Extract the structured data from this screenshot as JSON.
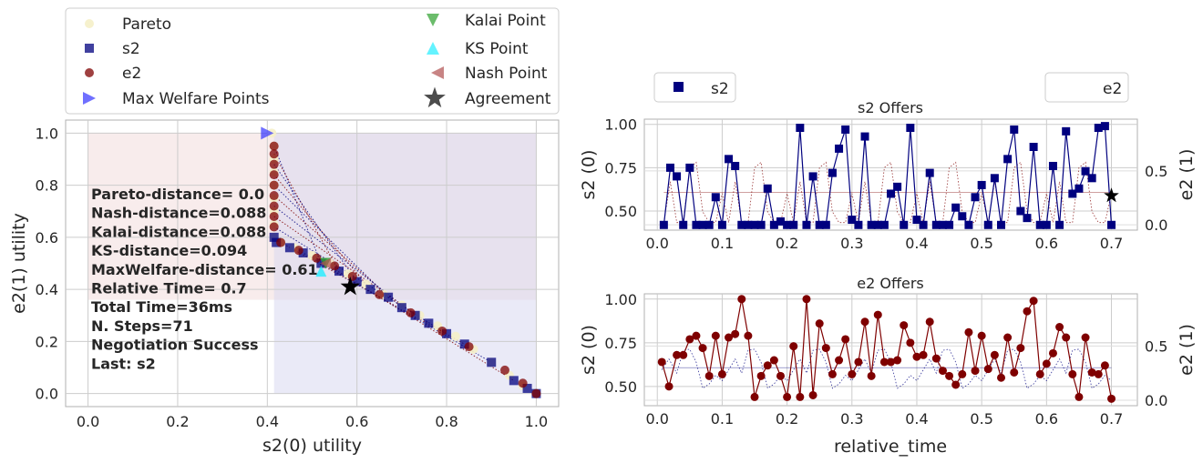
{
  "legend_left": {
    "entries": [
      {
        "label": "Pareto",
        "marker": "circle",
        "color": "#f5f0c8"
      },
      {
        "label": "s2",
        "marker": "square",
        "color": "#00007f"
      },
      {
        "label": "e2",
        "marker": "circle",
        "color": "#7f0000"
      },
      {
        "label": "Max Welfare Points",
        "marker": "triangle-right",
        "color": "#3333ff"
      },
      {
        "label": "Kalai Point",
        "marker": "triangle-down",
        "color": "#2ca02c"
      },
      {
        "label": "KS Point",
        "marker": "triangle-up",
        "color": "#22eeff"
      },
      {
        "label": "Nash Point",
        "marker": "triangle-left",
        "color": "#b05050"
      },
      {
        "label": "Agreement",
        "marker": "star",
        "color": "#000000"
      }
    ]
  },
  "colors": {
    "s2": "#00007f",
    "e2": "#7f0000",
    "grid": "#cccccc",
    "axis": "#b0b0b0",
    "text": "#262626"
  },
  "annotation_lines": [
    "Pareto-distance=  0.0",
    "Nash-distance=0.088",
    "Kalai-distance=0.088",
    "KS-distance=0.094",
    "MaxWelfare-distance= 0.61",
    "Relative Time=  0.7",
    "Total Time=36ms",
    "N. Steps=71",
    "Negotiation Success",
    "Last: s2"
  ],
  "chart_data": [
    {
      "type": "scatter",
      "xlabel": "s2(0) utility",
      "ylabel": "e2(1) utility",
      "xlim": [
        -0.05,
        1.05
      ],
      "ylim": [
        -0.05,
        1.05
      ],
      "xticks": [
        0.0,
        0.2,
        0.4,
        0.6,
        0.8,
        1.0
      ],
      "yticks": [
        0.0,
        0.2,
        0.4,
        0.6,
        0.8,
        1.0
      ],
      "grid": true,
      "pareto_frontier": [
        [
          0.41,
          1.0
        ],
        [
          0.415,
          0.95
        ],
        [
          0.415,
          0.9
        ],
        [
          0.415,
          0.85
        ],
        [
          0.415,
          0.8
        ],
        [
          0.415,
          0.75
        ],
        [
          0.415,
          0.7
        ],
        [
          0.415,
          0.65
        ],
        [
          0.415,
          0.6
        ],
        [
          0.43,
          0.58
        ],
        [
          0.46,
          0.56
        ],
        [
          0.5,
          0.53
        ],
        [
          0.54,
          0.5
        ],
        [
          0.58,
          0.46
        ],
        [
          0.62,
          0.42
        ],
        [
          0.66,
          0.38
        ],
        [
          0.7,
          0.34
        ],
        [
          0.74,
          0.3
        ],
        [
          0.78,
          0.26
        ],
        [
          0.82,
          0.22
        ],
        [
          0.86,
          0.17
        ],
        [
          0.9,
          0.12
        ],
        [
          0.94,
          0.07
        ],
        [
          0.97,
          0.03
        ],
        [
          1.0,
          0.0
        ]
      ],
      "s2_points": [
        [
          0.415,
          0.6
        ],
        [
          0.42,
          0.58
        ],
        [
          0.45,
          0.56
        ],
        [
          0.48,
          0.54
        ],
        [
          0.52,
          0.5
        ],
        [
          0.56,
          0.47
        ],
        [
          0.6,
          0.43
        ],
        [
          0.63,
          0.4
        ],
        [
          0.67,
          0.37
        ],
        [
          0.7,
          0.33
        ],
        [
          0.73,
          0.3
        ],
        [
          0.76,
          0.27
        ],
        [
          0.8,
          0.23
        ],
        [
          0.84,
          0.19
        ],
        [
          0.9,
          0.12
        ],
        [
          0.95,
          0.05
        ],
        [
          0.98,
          0.02
        ],
        [
          1.0,
          0.0
        ]
      ],
      "e2_points": [
        [
          0.415,
          0.95
        ],
        [
          0.415,
          0.92
        ],
        [
          0.415,
          0.88
        ],
        [
          0.415,
          0.84
        ],
        [
          0.415,
          0.8
        ],
        [
          0.415,
          0.76
        ],
        [
          0.415,
          0.72
        ],
        [
          0.415,
          0.68
        ],
        [
          0.415,
          0.64
        ],
        [
          0.43,
          0.58
        ],
        [
          0.47,
          0.55
        ],
        [
          0.51,
          0.52
        ],
        [
          0.55,
          0.49
        ],
        [
          0.59,
          0.45
        ],
        [
          0.65,
          0.38
        ],
        [
          0.72,
          0.31
        ],
        [
          0.79,
          0.24
        ],
        [
          0.85,
          0.18
        ],
        [
          0.93,
          0.09
        ],
        [
          0.97,
          0.04
        ],
        [
          1.0,
          0.0
        ]
      ],
      "max_welfare_point": [
        0.4,
        1.0
      ],
      "kalai_point": [
        0.53,
        0.5
      ],
      "ks_point": [
        0.52,
        0.47
      ],
      "nash_point": [
        0.53,
        0.5
      ],
      "agreement": [
        0.585,
        0.41
      ],
      "shaded_regions": [
        {
          "x": [
            0.0,
            1.0
          ],
          "y": [
            0.36,
            1.0
          ],
          "color": "#f2dcdc"
        },
        {
          "x": [
            0.415,
            1.0
          ],
          "y": [
            0.0,
            1.0
          ],
          "color": "#d8d8f0"
        }
      ]
    },
    {
      "type": "line",
      "title": "s2 Offers",
      "xlabel": "",
      "ylabel": "s2 (0)",
      "ylabel_right": "e2 (1)",
      "legend": [
        "s2"
      ],
      "legend_right": [
        "e2"
      ],
      "xlim": [
        -0.02,
        0.74
      ],
      "ylim": [
        0.39,
        1.03
      ],
      "ylim_right": [
        -0.05,
        0.98
      ],
      "xticks": [
        0.0,
        0.1,
        0.2,
        0.3,
        0.4,
        0.5,
        0.6,
        0.7
      ],
      "yticks": [
        0.5,
        0.75,
        1.0
      ],
      "yticks_right": [
        0.0,
        0.5
      ],
      "series": [
        {
          "name": "s2",
          "color": "#00007f",
          "x": [
            0.01,
            0.02,
            0.03,
            0.04,
            0.05,
            0.06,
            0.07,
            0.08,
            0.09,
            0.1,
            0.11,
            0.12,
            0.13,
            0.14,
            0.15,
            0.16,
            0.17,
            0.18,
            0.19,
            0.2,
            0.21,
            0.22,
            0.23,
            0.24,
            0.25,
            0.26,
            0.27,
            0.28,
            0.29,
            0.3,
            0.31,
            0.32,
            0.33,
            0.34,
            0.35,
            0.36,
            0.37,
            0.38,
            0.39,
            0.4,
            0.41,
            0.42,
            0.43,
            0.44,
            0.45,
            0.46,
            0.47,
            0.48,
            0.49,
            0.5,
            0.51,
            0.52,
            0.53,
            0.54,
            0.55,
            0.56,
            0.57,
            0.58,
            0.59,
            0.6,
            0.61,
            0.62,
            0.63,
            0.64,
            0.65,
            0.66,
            0.67,
            0.68,
            0.69,
            0.7
          ],
          "values": [
            0.42,
            0.75,
            0.7,
            0.42,
            0.75,
            0.42,
            0.42,
            0.42,
            0.58,
            0.42,
            0.8,
            0.76,
            0.42,
            0.42,
            0.42,
            0.42,
            0.63,
            0.42,
            0.44,
            0.42,
            0.42,
            0.98,
            0.42,
            0.7,
            0.42,
            0.42,
            0.72,
            0.86,
            0.97,
            0.45,
            0.42,
            0.93,
            0.42,
            0.42,
            0.42,
            0.6,
            0.64,
            0.42,
            0.98,
            0.45,
            0.42,
            0.72,
            0.42,
            0.42,
            0.42,
            0.52,
            0.47,
            0.42,
            0.58,
            0.65,
            0.42,
            0.69,
            0.42,
            0.8,
            0.97,
            0.5,
            0.46,
            0.87,
            0.42,
            0.42,
            0.76,
            0.42,
            0.96,
            0.6,
            0.63,
            0.73,
            0.69,
            0.98,
            0.99,
            0.42
          ]
        }
      ],
      "secondary_series": [
        {
          "name": "e2",
          "color": "#7f0000",
          "style": "dotted"
        }
      ],
      "agreement_marker": [
        0.7,
        0.27
      ]
    },
    {
      "type": "line",
      "title": "e2 Offers",
      "xlabel": "relative_time",
      "ylabel": "s2 (0)",
      "ylabel_right": "e2 (1)",
      "xlim": [
        -0.02,
        0.74
      ],
      "ylim": [
        0.39,
        1.03
      ],
      "ylim_right": [
        -0.05,
        0.98
      ],
      "xticks": [
        0.0,
        0.1,
        0.2,
        0.3,
        0.4,
        0.5,
        0.6,
        0.7
      ],
      "yticks": [
        0.5,
        0.75,
        1.0
      ],
      "yticks_right": [
        0.0,
        0.5
      ],
      "series": [
        {
          "name": "e2",
          "color": "#7f0000",
          "x": [
            0.007,
            0.018,
            0.03,
            0.04,
            0.05,
            0.06,
            0.07,
            0.08,
            0.09,
            0.1,
            0.11,
            0.12,
            0.13,
            0.14,
            0.15,
            0.16,
            0.17,
            0.18,
            0.19,
            0.2,
            0.21,
            0.22,
            0.23,
            0.24,
            0.25,
            0.26,
            0.27,
            0.28,
            0.29,
            0.3,
            0.31,
            0.32,
            0.33,
            0.34,
            0.35,
            0.36,
            0.37,
            0.38,
            0.39,
            0.4,
            0.41,
            0.42,
            0.43,
            0.44,
            0.45,
            0.46,
            0.47,
            0.48,
            0.49,
            0.5,
            0.51,
            0.52,
            0.53,
            0.54,
            0.55,
            0.56,
            0.57,
            0.58,
            0.59,
            0.6,
            0.61,
            0.62,
            0.63,
            0.64,
            0.65,
            0.66,
            0.67,
            0.68,
            0.69,
            0.7
          ],
          "values": [
            0.64,
            0.5,
            0.68,
            0.68,
            0.77,
            0.79,
            0.72,
            0.56,
            0.79,
            0.57,
            0.78,
            0.8,
            1.0,
            0.79,
            0.44,
            0.56,
            0.62,
            0.65,
            0.56,
            0.44,
            0.73,
            0.44,
            1.0,
            0.45,
            0.86,
            0.72,
            0.57,
            0.65,
            0.77,
            0.57,
            0.64,
            0.87,
            0.56,
            0.91,
            0.64,
            0.64,
            0.65,
            0.85,
            0.75,
            0.67,
            0.68,
            0.87,
            0.66,
            0.59,
            0.56,
            0.51,
            0.57,
            0.81,
            0.59,
            0.79,
            0.6,
            0.68,
            0.55,
            0.78,
            0.58,
            0.72,
            0.93,
            0.99,
            0.57,
            0.63,
            0.69,
            0.84,
            0.78,
            0.57,
            0.44,
            0.78,
            0.58,
            0.57,
            0.62,
            0.43
          ]
        }
      ],
      "secondary_series": [
        {
          "name": "s2",
          "color": "#00007f",
          "style": "dotted"
        }
      ]
    }
  ]
}
